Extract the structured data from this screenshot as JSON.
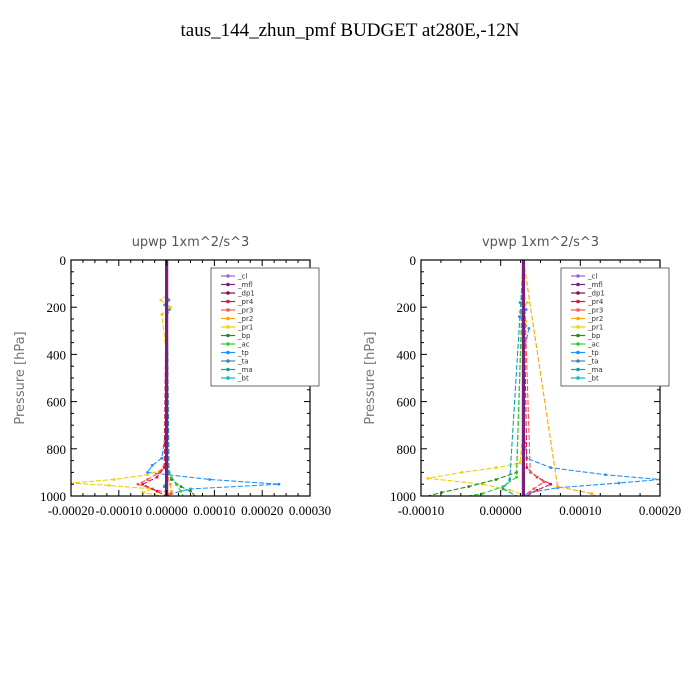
{
  "title": "taus_144_zhun_pmf  BUDGET at280E,-12N",
  "colors": {
    "_cl": "#9966cc",
    "_mfl": "#7a1f7a",
    "_dp1": "#8b0a50",
    "_pr4": "#dc143c",
    "_pr3": "#ff5050",
    "_pr2": "#ffa500",
    "_pr1": "#f0d000",
    "_bp": "#228b22",
    "_ac": "#32cd32",
    "_tp": "#1e90ff",
    "_ta": "#4682b4",
    "_ma": "#0aa0b4",
    "_bt": "#00bfbf"
  },
  "chart_data": [
    {
      "type": "line",
      "title": "upwp   1xm^2/s^3",
      "ylabel": "Pressure [hPa]",
      "ylim": [
        1000,
        0
      ],
      "xlim": [
        -0.0002,
        0.0003
      ],
      "xticks": [
        "-0.00020",
        "-0.00010",
        "0.00000",
        "0.00010",
        "0.00020",
        "0.00030"
      ],
      "yticks": [
        "0",
        "200",
        "400",
        "600",
        "800",
        "1000"
      ],
      "legend": [
        "_cl",
        "_mfl",
        "_dp1",
        "_pr4",
        "_pr3",
        "_pr2",
        "_pr1",
        "_bp",
        "_ac",
        "_tp",
        "_ta",
        "_ma",
        "_bt"
      ],
      "legend_position": "top-right",
      "series": [
        {
          "name": "_tp",
          "p": [
            0,
            150,
            170,
            190,
            210,
            240,
            400,
            700,
            840,
            870,
            900,
            930,
            950,
            970,
            990,
            1000
          ],
          "x": [
            0,
            0,
            5e-06,
            -4e-06,
            6e-06,
            0,
            0,
            0,
            -1e-05,
            -3e-05,
            -4e-05,
            9e-05,
            0.000235,
            5e-05,
            1e-05,
            0
          ]
        },
        {
          "name": "_pr1",
          "p": [
            0,
            150,
            170,
            200,
            230,
            400,
            700,
            880,
            910,
            930,
            945,
            955,
            970,
            985,
            1000
          ],
          "x": [
            0,
            0,
            -1.2e-05,
            8e-06,
            -1e-05,
            0,
            0,
            0,
            -4e-05,
            -0.00011,
            -0.0002,
            -0.00012,
            -3e-05,
            -5e-05,
            -1e-05
          ]
        },
        {
          "name": "_bp",
          "p": [
            0,
            850,
            900,
            930,
            960,
            980,
            1000
          ],
          "x": [
            0,
            0,
            5e-06,
            1e-05,
            3e-05,
            5e-05,
            6e-05
          ]
        },
        {
          "name": "_ac",
          "p": [
            0,
            900,
            950,
            980,
            1000
          ],
          "x": [
            0,
            5e-06,
            2e-05,
            3e-05,
            3.5e-05
          ]
        },
        {
          "name": "_pr3",
          "p": [
            0,
            850,
            900,
            930,
            950,
            970,
            990,
            1000
          ],
          "x": [
            0,
            0,
            -1.5e-05,
            -4e-05,
            -6e-05,
            -3e-05,
            1e-05,
            0
          ]
        },
        {
          "name": "_pr4",
          "p": [
            0,
            880,
            920,
            950,
            980,
            1000
          ],
          "x": [
            0,
            -5e-06,
            -2e-05,
            -5e-05,
            -2e-05,
            0
          ]
        },
        {
          "name": "_pr2",
          "p": [
            0,
            900,
            950,
            980,
            1000
          ],
          "x": [
            0,
            0,
            8e-06,
            1e-05,
            0
          ]
        },
        {
          "name": "_ma",
          "p": [
            0,
            900,
            960,
            1000
          ],
          "x": [
            0,
            5e-06,
            -5e-06,
            0
          ]
        },
        {
          "name": "_ta",
          "p": [
            0,
            1000
          ],
          "x": [
            0,
            0
          ]
        },
        {
          "name": "_bt",
          "p": [
            0,
            1000
          ],
          "x": [
            0,
            0
          ]
        },
        {
          "name": "_cl",
          "p": [
            0,
            1000
          ],
          "x": [
            0,
            0
          ]
        },
        {
          "name": "_dp1",
          "p": [
            0,
            1000
          ],
          "x": [
            0,
            0
          ]
        },
        {
          "name": "_mfl",
          "p": [
            0,
            1000
          ],
          "x": [
            0,
            0
          ]
        }
      ]
    },
    {
      "type": "line",
      "title": "vpwp   1xm^2/s^3",
      "ylabel": "Pressure [hPa]",
      "ylim": [
        1000,
        0
      ],
      "xlim": [
        -0.00015,
        0.0002
      ],
      "xticks": [
        "-0.00010",
        "0.00000",
        "0.00010",
        "0.00020"
      ],
      "yticks": [
        "0",
        "200",
        "400",
        "600",
        "800",
        "1000"
      ],
      "legend": [
        "_cl",
        "_mfl",
        "_dp1",
        "_pr4",
        "_pr3",
        "_pr2",
        "_pr1",
        "_bp",
        "_ac",
        "_tp",
        "_ta",
        "_ma",
        "_bt"
      ],
      "legend_position": "top-right",
      "series": [
        {
          "name": "_tp",
          "p": [
            0,
            150,
            180,
            210,
            240,
            290,
            400,
            700,
            840,
            880,
            910,
            930,
            945,
            965,
            985,
            1000
          ],
          "x": [
            0,
            0,
            -5e-06,
            4e-06,
            -6e-06,
            8e-06,
            0,
            0,
            5e-06,
            4e-05,
            0.00012,
            0.0002,
            0.00014,
            5e-05,
            1e-05,
            0
          ]
        },
        {
          "name": "_pr1",
          "p": [
            0,
            150,
            180,
            220,
            260,
            400,
            700,
            860,
            880,
            900,
            925,
            950,
            975,
            1000
          ],
          "x": [
            0,
            0,
            6e-06,
            -5e-06,
            4e-06,
            0,
            0,
            -5e-06,
            -4e-05,
            -9e-05,
            -0.00014,
            -6e-05,
            -2e-05,
            5e-06
          ]
        },
        {
          "name": "_bp",
          "p": [
            0,
            900,
            930,
            960,
            985,
            1000
          ],
          "x": [
            0,
            -1e-05,
            -4e-05,
            -8e-05,
            -0.00012,
            -0.00014
          ]
        },
        {
          "name": "_ac",
          "p": [
            0,
            920,
            960,
            990,
            1000
          ],
          "x": [
            0,
            -1e-05,
            -3e-05,
            -6e-05,
            -8e-05
          ]
        },
        {
          "name": "_pr4",
          "p": [
            0,
            880,
            920,
            950,
            975,
            1000
          ],
          "x": [
            0,
            5e-06,
            2e-05,
            4e-05,
            2e-05,
            5e-06
          ]
        },
        {
          "name": "_pr3",
          "p": [
            0,
            900,
            940,
            970,
            1000
          ],
          "x": [
            0,
            1e-05,
            3e-05,
            1.5e-05,
            0
          ]
        },
        {
          "name": "_pr2",
          "p": [
            0,
            960,
            990,
            1000
          ],
          "x": [
            0,
            5e-05,
            0.0001,
            0.000105
          ]
        },
        {
          "name": "_ma",
          "p": [
            0,
            930,
            970,
            1000
          ],
          "x": [
            0,
            -2e-05,
            -3e-05,
            -1e-05
          ]
        },
        {
          "name": "_ta",
          "p": [
            0,
            1000
          ],
          "x": [
            0,
            0
          ]
        },
        {
          "name": "_bt",
          "p": [
            0,
            1000
          ],
          "x": [
            0,
            0
          ]
        },
        {
          "name": "_cl",
          "p": [
            0,
            1000
          ],
          "x": [
            0,
            0
          ]
        },
        {
          "name": "_dp1",
          "p": [
            0,
            1000
          ],
          "x": [
            0,
            0
          ]
        },
        {
          "name": "_mfl",
          "p": [
            0,
            1000
          ],
          "x": [
            0,
            0
          ]
        }
      ]
    }
  ]
}
